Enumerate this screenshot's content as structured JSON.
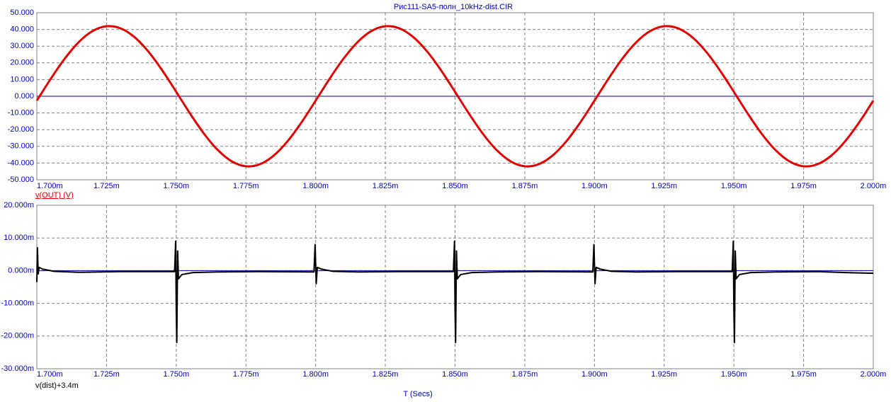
{
  "chart_data": [
    {
      "type": "line",
      "title": "Рис111-SA5-полн_10kHz-dist.CIR",
      "smooth": true,
      "x": [
        1.7,
        1.705,
        1.71,
        1.715,
        1.72,
        1.725,
        1.73,
        1.735,
        1.74,
        1.745,
        1.75,
        1.755,
        1.76,
        1.765,
        1.77,
        1.775,
        1.78,
        1.785,
        1.79,
        1.795,
        1.8,
        1.805,
        1.81,
        1.815,
        1.82,
        1.825,
        1.83,
        1.835,
        1.84,
        1.845,
        1.85,
        1.855,
        1.86,
        1.865,
        1.87,
        1.875,
        1.88,
        1.885,
        1.89,
        1.895,
        1.9,
        1.905,
        1.91,
        1.915,
        1.92,
        1.925,
        1.93,
        1.935,
        1.94,
        1.945,
        1.95,
        1.955,
        1.96,
        1.965,
        1.97,
        1.975,
        1.98,
        1.985,
        1.99,
        1.995,
        2.0
      ],
      "series": [
        {
          "name": "v(OUT) (V)",
          "color": "#e00000",
          "values": [
            -2.64,
            10.45,
            22.5,
            32.36,
            39.05,
            41.92,
            40.68,
            35.46,
            26.77,
            15.46,
            2.64,
            -10.45,
            -22.5,
            -32.36,
            -39.05,
            -41.92,
            -40.68,
            -35.46,
            -26.77,
            -15.46,
            -2.64,
            10.45,
            22.5,
            32.36,
            39.05,
            41.92,
            40.68,
            35.46,
            26.77,
            15.46,
            2.64,
            -10.45,
            -22.5,
            -32.36,
            -39.05,
            -41.92,
            -40.68,
            -35.46,
            -26.77,
            -15.46,
            -2.64,
            10.45,
            22.5,
            32.36,
            39.05,
            41.92,
            40.68,
            35.46,
            26.77,
            15.46,
            2.64,
            -10.45,
            -22.5,
            -32.36,
            -39.05,
            -41.92,
            -40.68,
            -35.46,
            -26.77,
            -15.46,
            -2.64
          ]
        }
      ],
      "reference_lines": [
        {
          "value": 0,
          "color": "#00008b"
        }
      ],
      "xlim": [
        1.7,
        2.0
      ],
      "xticks": [
        {
          "value": 1.7,
          "label": "1.700m"
        },
        {
          "value": 1.725,
          "label": "1.725m"
        },
        {
          "value": 1.75,
          "label": "1.750m"
        },
        {
          "value": 1.775,
          "label": "1.775m"
        },
        {
          "value": 1.8,
          "label": "1.800m"
        },
        {
          "value": 1.825,
          "label": "1.825m"
        },
        {
          "value": 1.85,
          "label": "1.850m"
        },
        {
          "value": 1.875,
          "label": "1.875m"
        },
        {
          "value": 1.9,
          "label": "1.900m"
        },
        {
          "value": 1.925,
          "label": "1.925m"
        },
        {
          "value": 1.95,
          "label": "1.950m"
        },
        {
          "value": 1.975,
          "label": "1.975m"
        },
        {
          "value": 2.0,
          "label": "2.000m"
        }
      ],
      "ylim": [
        -50,
        50
      ],
      "yticks": [
        {
          "value": 50,
          "label": "50.000"
        },
        {
          "value": 40,
          "label": "40.000"
        },
        {
          "value": 30,
          "label": "30.000"
        },
        {
          "value": 20,
          "label": "20.000"
        },
        {
          "value": 10,
          "label": "10.000"
        },
        {
          "value": 0,
          "label": "0.000"
        },
        {
          "value": -10,
          "label": "-10.000"
        },
        {
          "value": -20,
          "label": "-20.000"
        },
        {
          "value": -30,
          "label": "-30.000"
        },
        {
          "value": -40,
          "label": "-40.000"
        },
        {
          "value": -50,
          "label": "-50.000"
        }
      ],
      "grid": true
    },
    {
      "type": "line",
      "xlabel": "T (Secs)",
      "smooth": false,
      "x": [
        1.7,
        1.7002,
        1.7005,
        1.7008,
        1.702,
        1.706,
        1.715,
        1.73,
        1.7494,
        1.7498,
        1.75,
        1.7502,
        1.7505,
        1.7508,
        1.752,
        1.756,
        1.765,
        1.78,
        1.7994,
        1.7998,
        1.8002,
        1.8006,
        1.802,
        1.806,
        1.815,
        1.83,
        1.8494,
        1.8498,
        1.85,
        1.8502,
        1.8505,
        1.8508,
        1.852,
        1.856,
        1.865,
        1.88,
        1.8994,
        1.8998,
        1.9002,
        1.9006,
        1.902,
        1.906,
        1.915,
        1.93,
        1.9494,
        1.9498,
        1.95,
        1.9502,
        1.9505,
        1.9508,
        1.952,
        1.956,
        1.965,
        1.98,
        1.99,
        2.0
      ],
      "series": [
        {
          "name": "v(dist)+3.4m",
          "color": "#000000",
          "values": [
            -3.5,
            7,
            -1,
            1,
            0.5,
            -0.2,
            -0.5,
            -0.3,
            -0.3,
            9,
            -12,
            -22,
            6,
            -2.5,
            -1.2,
            -0.6,
            -0.4,
            -0.3,
            -0.4,
            8,
            -4,
            1,
            0.5,
            -0.2,
            -0.4,
            -0.3,
            -0.3,
            9,
            -12,
            -22,
            6,
            -2.5,
            -1.2,
            -0.6,
            -0.4,
            -0.3,
            -0.4,
            8,
            -4,
            1,
            0.5,
            -0.2,
            -0.4,
            -0.3,
            -0.3,
            9,
            -12,
            -22,
            6,
            -2.5,
            -1.2,
            -0.6,
            -0.4,
            -0.3,
            -0.6,
            -0.8
          ]
        }
      ],
      "reference_lines": [
        {
          "value": 0,
          "color": "#00008b"
        }
      ],
      "xlim": [
        1.7,
        2.0
      ],
      "xticks": [
        {
          "value": 1.7,
          "label": "1.700m"
        },
        {
          "value": 1.725,
          "label": "1.725m"
        },
        {
          "value": 1.75,
          "label": "1.750m"
        },
        {
          "value": 1.775,
          "label": "1.775m"
        },
        {
          "value": 1.8,
          "label": "1.800m"
        },
        {
          "value": 1.825,
          "label": "1.825m"
        },
        {
          "value": 1.85,
          "label": "1.850m"
        },
        {
          "value": 1.875,
          "label": "1.875m"
        },
        {
          "value": 1.9,
          "label": "1.900m"
        },
        {
          "value": 1.925,
          "label": "1.925m"
        },
        {
          "value": 1.95,
          "label": "1.950m"
        },
        {
          "value": 1.975,
          "label": "1.975m"
        },
        {
          "value": 2.0,
          "label": "2.000m"
        }
      ],
      "ylim": [
        -30,
        20
      ],
      "yticks": [
        {
          "value": 20,
          "label": "20.000m"
        },
        {
          "value": 10,
          "label": "10.000m"
        },
        {
          "value": 0,
          "label": "0.000m"
        },
        {
          "value": -10,
          "label": "-10.000m"
        },
        {
          "value": -20,
          "label": "-20.000m"
        },
        {
          "value": -30,
          "label": "-30.000m"
        }
      ],
      "grid": true
    }
  ]
}
